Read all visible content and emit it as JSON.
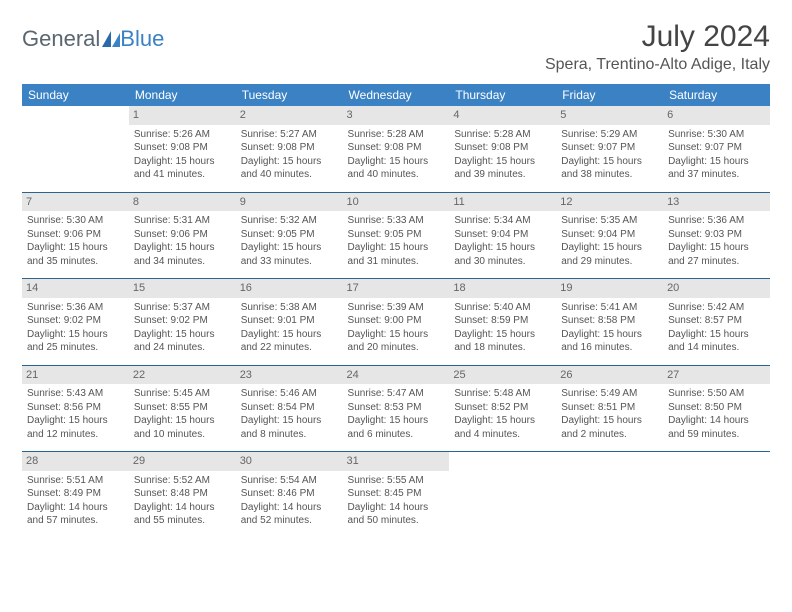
{
  "brand": {
    "part1": "General",
    "part2": "Blue"
  },
  "title": "July 2024",
  "location": "Spera, Trentino-Alto Adige, Italy",
  "colors": {
    "header_bg": "#3b82c4",
    "header_text": "#ffffff",
    "daynum_bg": "#e6e6e6",
    "daynum_text": "#666666",
    "rule": "#2b648f",
    "body_text": "#555555",
    "title_text": "#444444",
    "logo_gray": "#5a6670",
    "logo_blue": "#3b82c4"
  },
  "weekdays": [
    "Sunday",
    "Monday",
    "Tuesday",
    "Wednesday",
    "Thursday",
    "Friday",
    "Saturday"
  ],
  "weeks": [
    [
      null,
      {
        "n": "1",
        "sr": "Sunrise: 5:26 AM",
        "ss": "Sunset: 9:08 PM",
        "dl": "Daylight: 15 hours and 41 minutes."
      },
      {
        "n": "2",
        "sr": "Sunrise: 5:27 AM",
        "ss": "Sunset: 9:08 PM",
        "dl": "Daylight: 15 hours and 40 minutes."
      },
      {
        "n": "3",
        "sr": "Sunrise: 5:28 AM",
        "ss": "Sunset: 9:08 PM",
        "dl": "Daylight: 15 hours and 40 minutes."
      },
      {
        "n": "4",
        "sr": "Sunrise: 5:28 AM",
        "ss": "Sunset: 9:08 PM",
        "dl": "Daylight: 15 hours and 39 minutes."
      },
      {
        "n": "5",
        "sr": "Sunrise: 5:29 AM",
        "ss": "Sunset: 9:07 PM",
        "dl": "Daylight: 15 hours and 38 minutes."
      },
      {
        "n": "6",
        "sr": "Sunrise: 5:30 AM",
        "ss": "Sunset: 9:07 PM",
        "dl": "Daylight: 15 hours and 37 minutes."
      }
    ],
    [
      {
        "n": "7",
        "sr": "Sunrise: 5:30 AM",
        "ss": "Sunset: 9:06 PM",
        "dl": "Daylight: 15 hours and 35 minutes."
      },
      {
        "n": "8",
        "sr": "Sunrise: 5:31 AM",
        "ss": "Sunset: 9:06 PM",
        "dl": "Daylight: 15 hours and 34 minutes."
      },
      {
        "n": "9",
        "sr": "Sunrise: 5:32 AM",
        "ss": "Sunset: 9:05 PM",
        "dl": "Daylight: 15 hours and 33 minutes."
      },
      {
        "n": "10",
        "sr": "Sunrise: 5:33 AM",
        "ss": "Sunset: 9:05 PM",
        "dl": "Daylight: 15 hours and 31 minutes."
      },
      {
        "n": "11",
        "sr": "Sunrise: 5:34 AM",
        "ss": "Sunset: 9:04 PM",
        "dl": "Daylight: 15 hours and 30 minutes."
      },
      {
        "n": "12",
        "sr": "Sunrise: 5:35 AM",
        "ss": "Sunset: 9:04 PM",
        "dl": "Daylight: 15 hours and 29 minutes."
      },
      {
        "n": "13",
        "sr": "Sunrise: 5:36 AM",
        "ss": "Sunset: 9:03 PM",
        "dl": "Daylight: 15 hours and 27 minutes."
      }
    ],
    [
      {
        "n": "14",
        "sr": "Sunrise: 5:36 AM",
        "ss": "Sunset: 9:02 PM",
        "dl": "Daylight: 15 hours and 25 minutes."
      },
      {
        "n": "15",
        "sr": "Sunrise: 5:37 AM",
        "ss": "Sunset: 9:02 PM",
        "dl": "Daylight: 15 hours and 24 minutes."
      },
      {
        "n": "16",
        "sr": "Sunrise: 5:38 AM",
        "ss": "Sunset: 9:01 PM",
        "dl": "Daylight: 15 hours and 22 minutes."
      },
      {
        "n": "17",
        "sr": "Sunrise: 5:39 AM",
        "ss": "Sunset: 9:00 PM",
        "dl": "Daylight: 15 hours and 20 minutes."
      },
      {
        "n": "18",
        "sr": "Sunrise: 5:40 AM",
        "ss": "Sunset: 8:59 PM",
        "dl": "Daylight: 15 hours and 18 minutes."
      },
      {
        "n": "19",
        "sr": "Sunrise: 5:41 AM",
        "ss": "Sunset: 8:58 PM",
        "dl": "Daylight: 15 hours and 16 minutes."
      },
      {
        "n": "20",
        "sr": "Sunrise: 5:42 AM",
        "ss": "Sunset: 8:57 PM",
        "dl": "Daylight: 15 hours and 14 minutes."
      }
    ],
    [
      {
        "n": "21",
        "sr": "Sunrise: 5:43 AM",
        "ss": "Sunset: 8:56 PM",
        "dl": "Daylight: 15 hours and 12 minutes."
      },
      {
        "n": "22",
        "sr": "Sunrise: 5:45 AM",
        "ss": "Sunset: 8:55 PM",
        "dl": "Daylight: 15 hours and 10 minutes."
      },
      {
        "n": "23",
        "sr": "Sunrise: 5:46 AM",
        "ss": "Sunset: 8:54 PM",
        "dl": "Daylight: 15 hours and 8 minutes."
      },
      {
        "n": "24",
        "sr": "Sunrise: 5:47 AM",
        "ss": "Sunset: 8:53 PM",
        "dl": "Daylight: 15 hours and 6 minutes."
      },
      {
        "n": "25",
        "sr": "Sunrise: 5:48 AM",
        "ss": "Sunset: 8:52 PM",
        "dl": "Daylight: 15 hours and 4 minutes."
      },
      {
        "n": "26",
        "sr": "Sunrise: 5:49 AM",
        "ss": "Sunset: 8:51 PM",
        "dl": "Daylight: 15 hours and 2 minutes."
      },
      {
        "n": "27",
        "sr": "Sunrise: 5:50 AM",
        "ss": "Sunset: 8:50 PM",
        "dl": "Daylight: 14 hours and 59 minutes."
      }
    ],
    [
      {
        "n": "28",
        "sr": "Sunrise: 5:51 AM",
        "ss": "Sunset: 8:49 PM",
        "dl": "Daylight: 14 hours and 57 minutes."
      },
      {
        "n": "29",
        "sr": "Sunrise: 5:52 AM",
        "ss": "Sunset: 8:48 PM",
        "dl": "Daylight: 14 hours and 55 minutes."
      },
      {
        "n": "30",
        "sr": "Sunrise: 5:54 AM",
        "ss": "Sunset: 8:46 PM",
        "dl": "Daylight: 14 hours and 52 minutes."
      },
      {
        "n": "31",
        "sr": "Sunrise: 5:55 AM",
        "ss": "Sunset: 8:45 PM",
        "dl": "Daylight: 14 hours and 50 minutes."
      },
      null,
      null,
      null
    ]
  ]
}
